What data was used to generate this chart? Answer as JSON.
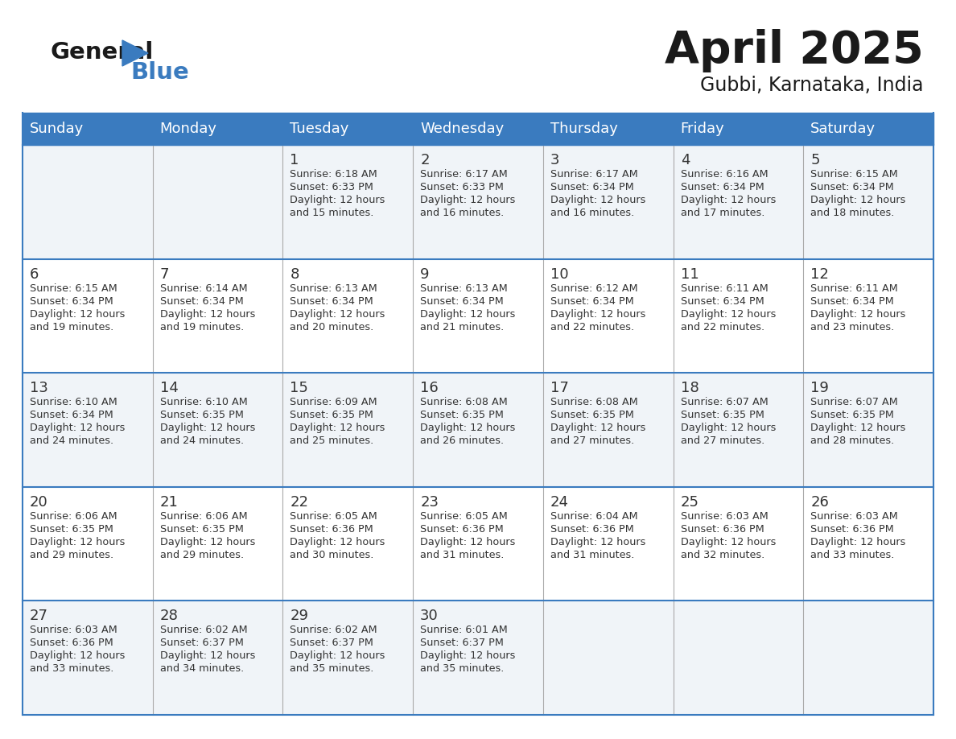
{
  "title": "April 2025",
  "subtitle": "Gubbi, Karnataka, India",
  "header_bg_color": "#3a7bbf",
  "header_text_color": "#ffffff",
  "day_names": [
    "Sunday",
    "Monday",
    "Tuesday",
    "Wednesday",
    "Thursday",
    "Friday",
    "Saturday"
  ],
  "row_colors": [
    "#f0f4f8",
    "#ffffff"
  ],
  "border_color": "#3a7bbf",
  "text_color": "#333333",
  "calendar_data": [
    [
      {
        "day": "",
        "sunrise": "",
        "sunset": "",
        "daylight": ""
      },
      {
        "day": "",
        "sunrise": "",
        "sunset": "",
        "daylight": ""
      },
      {
        "day": "1",
        "sunrise": "6:18 AM",
        "sunset": "6:33 PM",
        "daylight": "12 hours\nand 15 minutes."
      },
      {
        "day": "2",
        "sunrise": "6:17 AM",
        "sunset": "6:33 PM",
        "daylight": "12 hours\nand 16 minutes."
      },
      {
        "day": "3",
        "sunrise": "6:17 AM",
        "sunset": "6:34 PM",
        "daylight": "12 hours\nand 16 minutes."
      },
      {
        "day": "4",
        "sunrise": "6:16 AM",
        "sunset": "6:34 PM",
        "daylight": "12 hours\nand 17 minutes."
      },
      {
        "day": "5",
        "sunrise": "6:15 AM",
        "sunset": "6:34 PM",
        "daylight": "12 hours\nand 18 minutes."
      }
    ],
    [
      {
        "day": "6",
        "sunrise": "6:15 AM",
        "sunset": "6:34 PM",
        "daylight": "12 hours\nand 19 minutes."
      },
      {
        "day": "7",
        "sunrise": "6:14 AM",
        "sunset": "6:34 PM",
        "daylight": "12 hours\nand 19 minutes."
      },
      {
        "day": "8",
        "sunrise": "6:13 AM",
        "sunset": "6:34 PM",
        "daylight": "12 hours\nand 20 minutes."
      },
      {
        "day": "9",
        "sunrise": "6:13 AM",
        "sunset": "6:34 PM",
        "daylight": "12 hours\nand 21 minutes."
      },
      {
        "day": "10",
        "sunrise": "6:12 AM",
        "sunset": "6:34 PM",
        "daylight": "12 hours\nand 22 minutes."
      },
      {
        "day": "11",
        "sunrise": "6:11 AM",
        "sunset": "6:34 PM",
        "daylight": "12 hours\nand 22 minutes."
      },
      {
        "day": "12",
        "sunrise": "6:11 AM",
        "sunset": "6:34 PM",
        "daylight": "12 hours\nand 23 minutes."
      }
    ],
    [
      {
        "day": "13",
        "sunrise": "6:10 AM",
        "sunset": "6:34 PM",
        "daylight": "12 hours\nand 24 minutes."
      },
      {
        "day": "14",
        "sunrise": "6:10 AM",
        "sunset": "6:35 PM",
        "daylight": "12 hours\nand 24 minutes."
      },
      {
        "day": "15",
        "sunrise": "6:09 AM",
        "sunset": "6:35 PM",
        "daylight": "12 hours\nand 25 minutes."
      },
      {
        "day": "16",
        "sunrise": "6:08 AM",
        "sunset": "6:35 PM",
        "daylight": "12 hours\nand 26 minutes."
      },
      {
        "day": "17",
        "sunrise": "6:08 AM",
        "sunset": "6:35 PM",
        "daylight": "12 hours\nand 27 minutes."
      },
      {
        "day": "18",
        "sunrise": "6:07 AM",
        "sunset": "6:35 PM",
        "daylight": "12 hours\nand 27 minutes."
      },
      {
        "day": "19",
        "sunrise": "6:07 AM",
        "sunset": "6:35 PM",
        "daylight": "12 hours\nand 28 minutes."
      }
    ],
    [
      {
        "day": "20",
        "sunrise": "6:06 AM",
        "sunset": "6:35 PM",
        "daylight": "12 hours\nand 29 minutes."
      },
      {
        "day": "21",
        "sunrise": "6:06 AM",
        "sunset": "6:35 PM",
        "daylight": "12 hours\nand 29 minutes."
      },
      {
        "day": "22",
        "sunrise": "6:05 AM",
        "sunset": "6:36 PM",
        "daylight": "12 hours\nand 30 minutes."
      },
      {
        "day": "23",
        "sunrise": "6:05 AM",
        "sunset": "6:36 PM",
        "daylight": "12 hours\nand 31 minutes."
      },
      {
        "day": "24",
        "sunrise": "6:04 AM",
        "sunset": "6:36 PM",
        "daylight": "12 hours\nand 31 minutes."
      },
      {
        "day": "25",
        "sunrise": "6:03 AM",
        "sunset": "6:36 PM",
        "daylight": "12 hours\nand 32 minutes."
      },
      {
        "day": "26",
        "sunrise": "6:03 AM",
        "sunset": "6:36 PM",
        "daylight": "12 hours\nand 33 minutes."
      }
    ],
    [
      {
        "day": "27",
        "sunrise": "6:03 AM",
        "sunset": "6:36 PM",
        "daylight": "12 hours\nand 33 minutes."
      },
      {
        "day": "28",
        "sunrise": "6:02 AM",
        "sunset": "6:37 PM",
        "daylight": "12 hours\nand 34 minutes."
      },
      {
        "day": "29",
        "sunrise": "6:02 AM",
        "sunset": "6:37 PM",
        "daylight": "12 hours\nand 35 minutes."
      },
      {
        "day": "30",
        "sunrise": "6:01 AM",
        "sunset": "6:37 PM",
        "daylight": "12 hours\nand 35 minutes."
      },
      {
        "day": "",
        "sunrise": "",
        "sunset": "",
        "daylight": ""
      },
      {
        "day": "",
        "sunrise": "",
        "sunset": "",
        "daylight": ""
      },
      {
        "day": "",
        "sunrise": "",
        "sunset": "",
        "daylight": ""
      }
    ]
  ]
}
